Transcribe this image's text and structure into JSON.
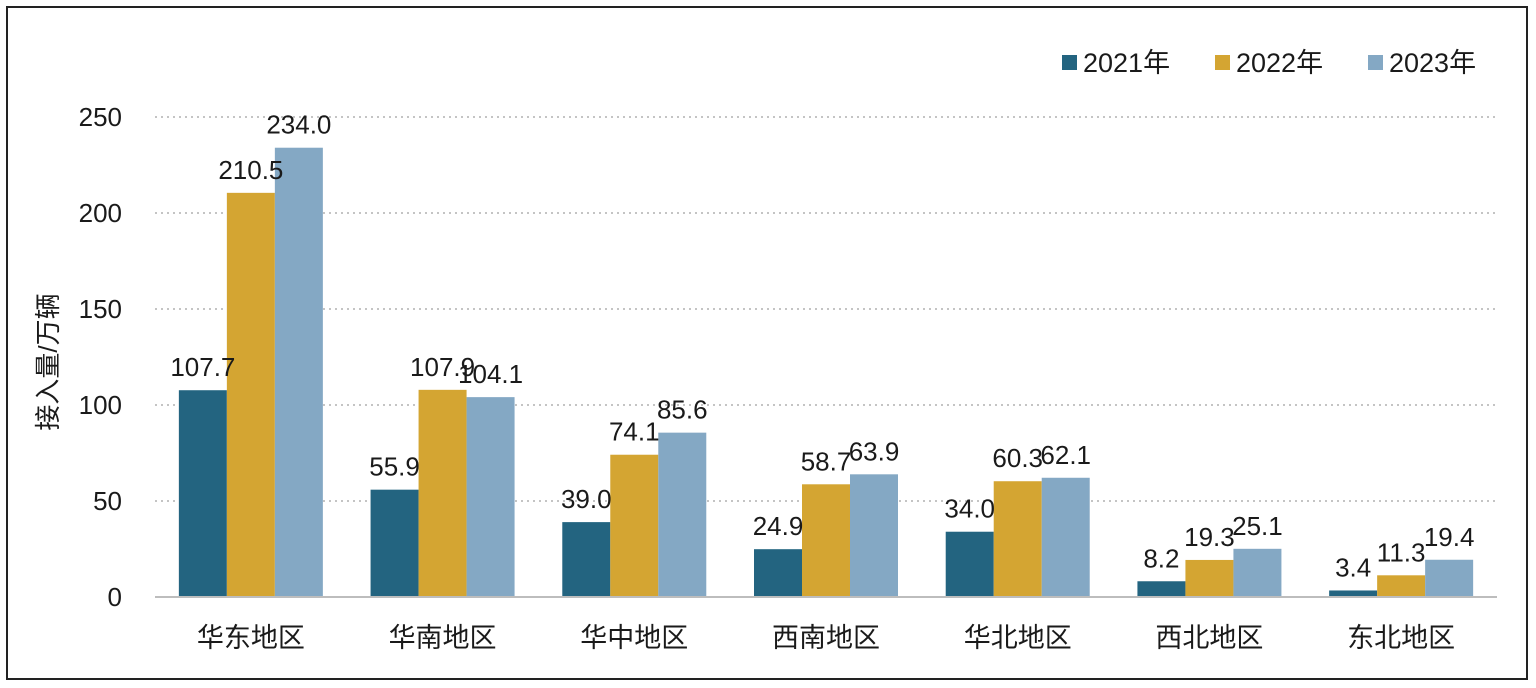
{
  "chart_data": {
    "type": "bar",
    "title": "",
    "xlabel": "",
    "ylabel": "接入量/万辆",
    "ylim": [
      0,
      250
    ],
    "yticks": [
      "0",
      "50",
      "100",
      "150",
      "200",
      "250"
    ],
    "grid": true,
    "legend_position": "top-right",
    "categories": [
      "华东地区",
      "华南地区",
      "华中地区",
      "西南地区",
      "华北地区",
      "西北地区",
      "东北地区"
    ],
    "series": [
      {
        "name": "2021年",
        "color": "#236480",
        "values": [
          107.7,
          55.9,
          39.0,
          24.9,
          34.0,
          8.2,
          3.4
        ],
        "labels": [
          "107.7",
          "55.9",
          "39.0",
          "24.9",
          "34.0",
          "8.2",
          "3.4"
        ]
      },
      {
        "name": "2022年",
        "color": "#d4a532",
        "values": [
          210.5,
          107.9,
          74.1,
          58.7,
          60.3,
          19.3,
          11.3
        ],
        "labels": [
          "210.5",
          "107.9",
          "74.1",
          "58.7",
          "60.3",
          "19.3",
          "11.3"
        ]
      },
      {
        "name": "2023年",
        "color": "#84a8c4",
        "values": [
          234.0,
          104.1,
          85.6,
          63.9,
          62.1,
          25.1,
          19.4
        ],
        "labels": [
          "234.0",
          "104.1",
          "85.6",
          "63.9",
          "62.1",
          "25.1",
          "19.4"
        ]
      }
    ]
  }
}
